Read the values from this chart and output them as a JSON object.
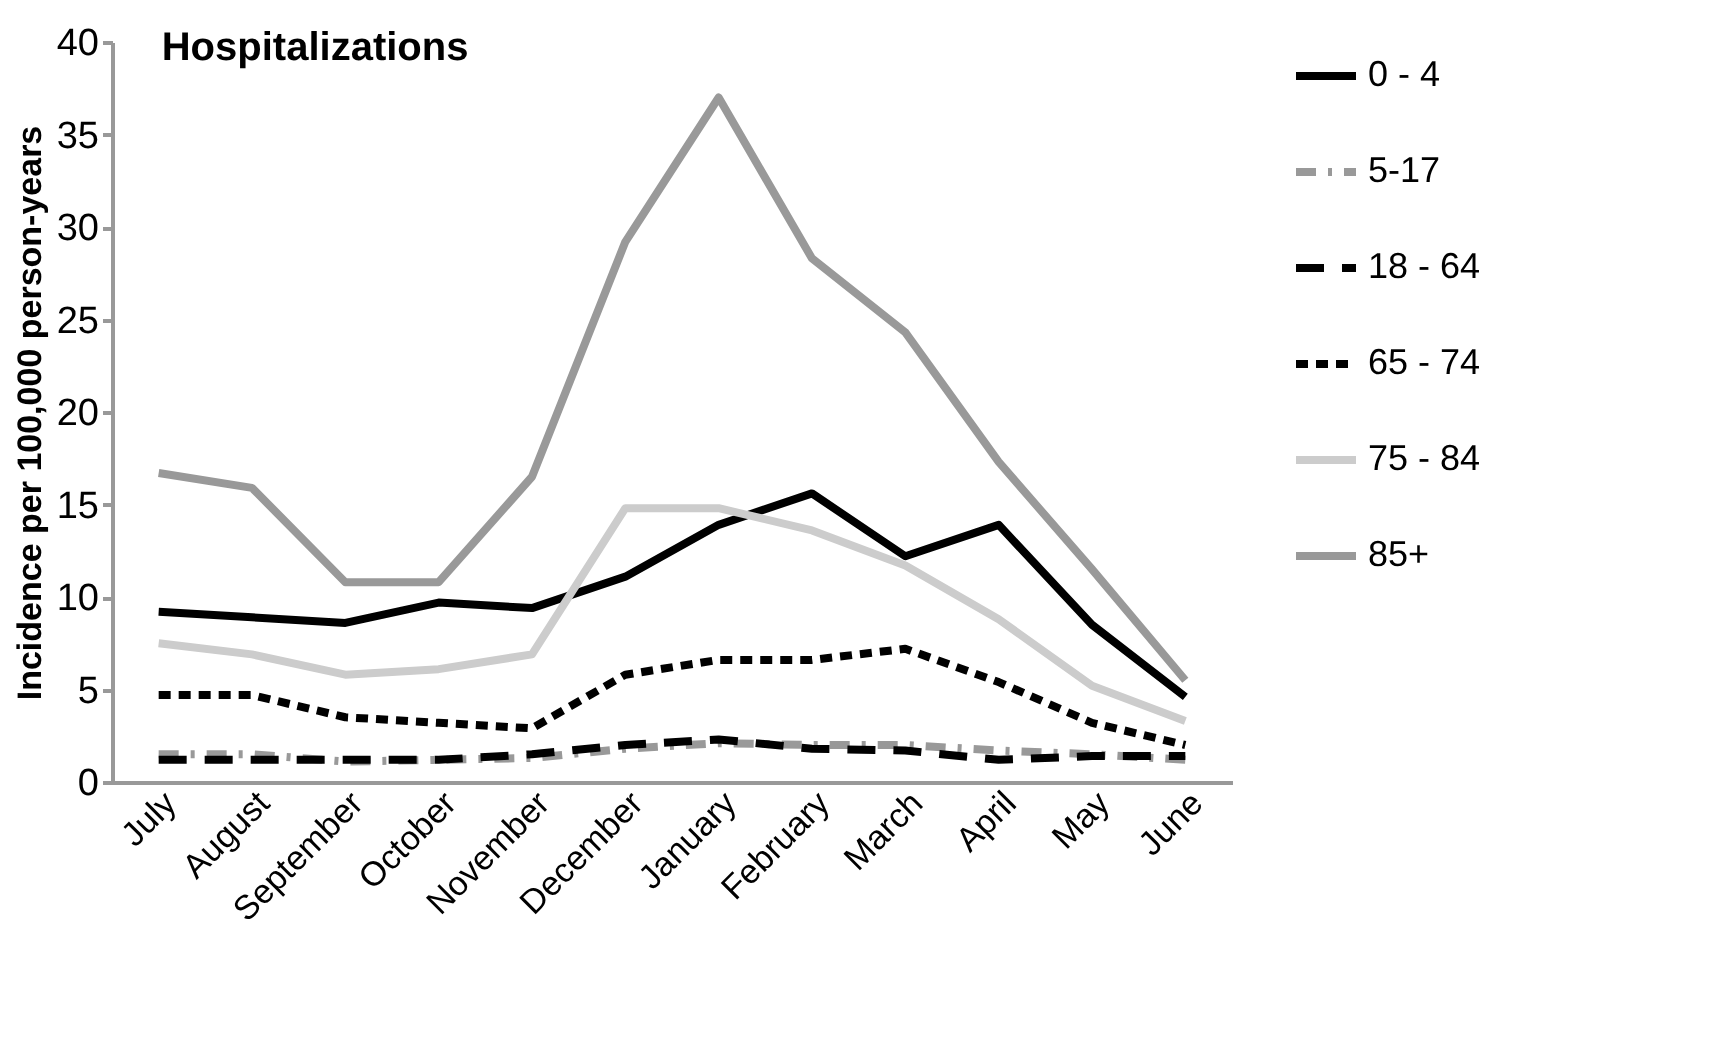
{
  "chart_data": {
    "type": "line",
    "title": "Hospitalizations",
    "ylabel": "Incidence per 100,000 person-years",
    "categories": [
      "July",
      "August",
      "September",
      "October",
      "November",
      "December",
      "January",
      "February",
      "March",
      "April",
      "May",
      "June"
    ],
    "ylim": [
      0,
      40
    ],
    "yticks": [
      0,
      5,
      10,
      15,
      20,
      25,
      30,
      35,
      40
    ],
    "grid": false,
    "legend": "right",
    "marker": "none",
    "series": [
      {
        "name": "0 - 4",
        "color": "#000000",
        "line_style": "solid",
        "values": [
          9.2,
          8.9,
          8.6,
          9.7,
          9.4,
          11.1,
          13.9,
          15.6,
          12.2,
          13.9,
          8.5,
          4.6
        ]
      },
      {
        "name": "5-17",
        "color": "#999999",
        "line_style": "dashdot",
        "values": [
          1.5,
          1.5,
          1.1,
          1.2,
          1.3,
          1.8,
          2.1,
          2.0,
          2.0,
          1.7,
          1.5,
          1.2
        ]
      },
      {
        "name": "18 - 64",
        "color": "#000000",
        "line_style": "dashed",
        "values": [
          1.2,
          1.2,
          1.2,
          1.2,
          1.5,
          2.0,
          2.3,
          1.8,
          1.7,
          1.2,
          1.4,
          1.4
        ]
      },
      {
        "name": "65 - 74",
        "color": "#000000",
        "line_style": "dotted",
        "values": [
          4.7,
          4.7,
          3.5,
          3.2,
          2.9,
          5.8,
          6.6,
          6.6,
          7.2,
          5.4,
          3.2,
          2.0
        ]
      },
      {
        "name": "75 - 84",
        "color": "#cccccc",
        "line_style": "solid",
        "values": [
          7.5,
          6.9,
          5.8,
          6.1,
          6.9,
          14.8,
          14.8,
          13.6,
          11.7,
          8.8,
          5.2,
          3.3
        ]
      },
      {
        "name": "85+",
        "color": "#999999",
        "line_style": "solid",
        "values": [
          16.7,
          15.9,
          10.8,
          10.8,
          16.5,
          29.2,
          37.0,
          28.3,
          24.3,
          17.3,
          11.5,
          5.5
        ]
      }
    ]
  }
}
